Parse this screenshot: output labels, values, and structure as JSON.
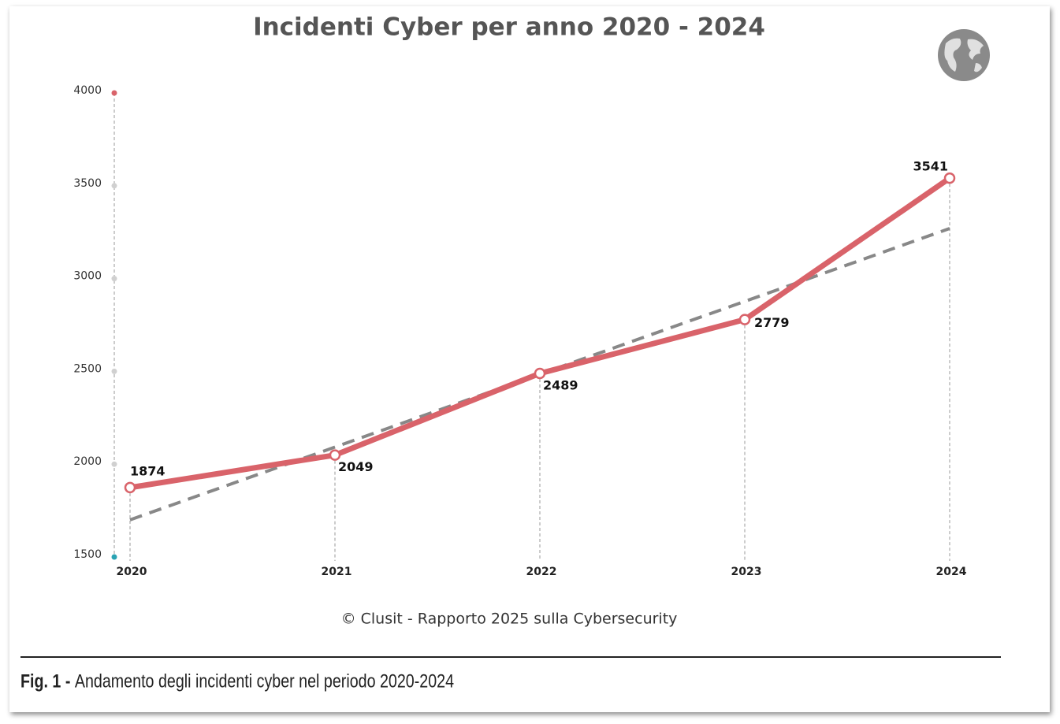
{
  "chart_data": {
    "type": "line",
    "title": "Incidenti Cyber per anno 2020 - 2024",
    "categories": [
      "2020",
      "2021",
      "2022",
      "2023",
      "2024"
    ],
    "series": [
      {
        "color": "#d9636a",
        "values": [
          1874,
          2049,
          2489,
          2779,
          3541
        ]
      }
    ],
    "trend": {
      "color": "#888888",
      "values": [
        1700,
        2092,
        2485,
        2877,
        3270
      ]
    },
    "ylim": [
      1500,
      4000
    ],
    "yticks": [
      1500,
      2000,
      2500,
      3000,
      3500,
      4000
    ],
    "source": "© Clusit - Rapporto 2025 sulla Cybersecurity",
    "caption_label": "Fig. 1 -",
    "caption": "Andamento degli incidenti cyber nel periodo 2020-2024"
  }
}
